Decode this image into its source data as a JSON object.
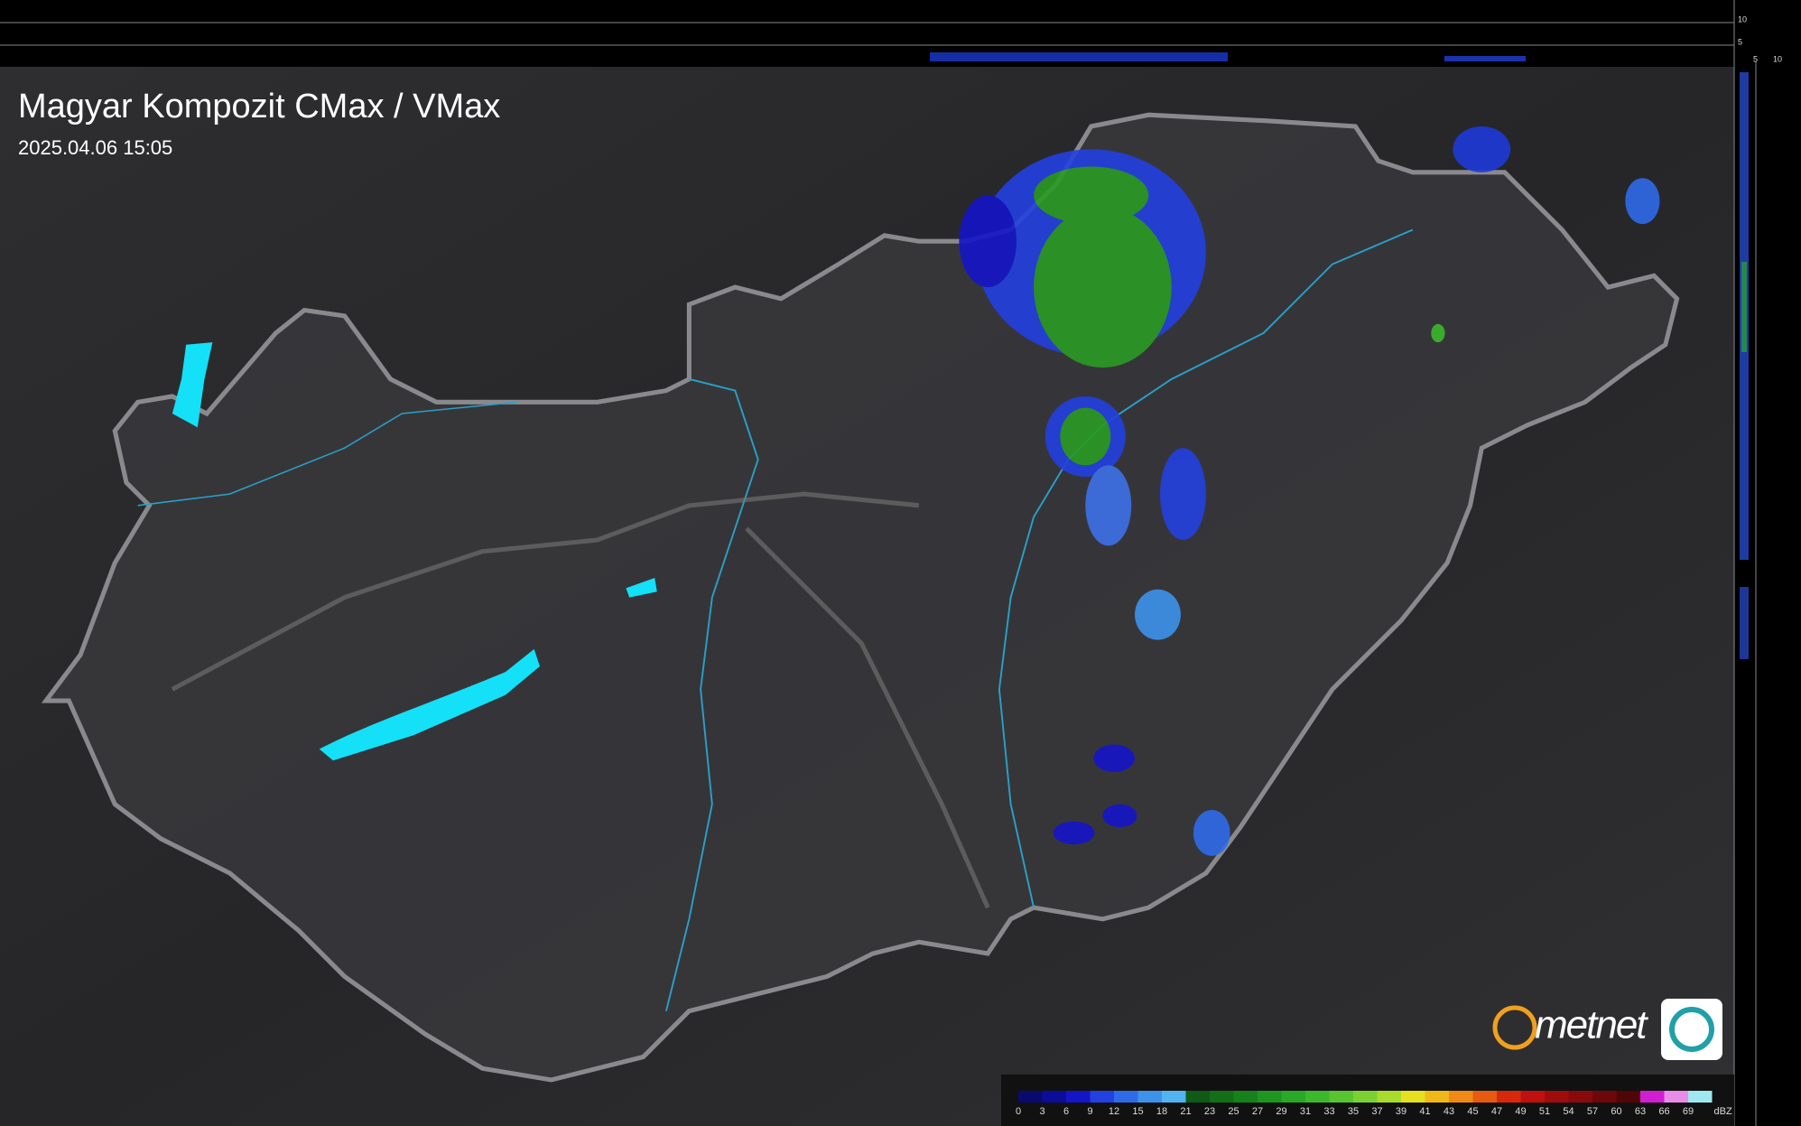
{
  "header": {
    "title": "Magyar Kompozit CMax / VMax",
    "timestamp": "2025.04.06 15:05"
  },
  "side_axis": {
    "top_ticks": [
      "10",
      "5"
    ],
    "bottom_ticks": [
      "5",
      "10"
    ]
  },
  "logo": {
    "text": "metnet"
  },
  "legend": {
    "unit": "dBZ",
    "items": [
      {
        "label": "0",
        "color": "#0a0a6e"
      },
      {
        "label": "3",
        "color": "#0c0c9a"
      },
      {
        "label": "6",
        "color": "#1515c8"
      },
      {
        "label": "9",
        "color": "#2340e0"
      },
      {
        "label": "12",
        "color": "#2f6ae8"
      },
      {
        "label": "15",
        "color": "#3d92ec"
      },
      {
        "label": "18",
        "color": "#4fb4f0"
      },
      {
        "label": "21",
        "color": "#0f5a14"
      },
      {
        "label": "23",
        "color": "#136e18"
      },
      {
        "label": "25",
        "color": "#17821c"
      },
      {
        "label": "27",
        "color": "#1f9622"
      },
      {
        "label": "29",
        "color": "#2aa828"
      },
      {
        "label": "31",
        "color": "#3cb82c"
      },
      {
        "label": "33",
        "color": "#58c430"
      },
      {
        "label": "35",
        "color": "#7cd034"
      },
      {
        "label": "37",
        "color": "#a8dc2c"
      },
      {
        "label": "39",
        "color": "#e6e020"
      },
      {
        "label": "41",
        "color": "#f0b818"
      },
      {
        "label": "43",
        "color": "#f08a14"
      },
      {
        "label": "45",
        "color": "#e85a10"
      },
      {
        "label": "47",
        "color": "#d8280c"
      },
      {
        "label": "49",
        "color": "#c01010"
      },
      {
        "label": "51",
        "color": "#a00c0c"
      },
      {
        "label": "54",
        "color": "#880a0a"
      },
      {
        "label": "57",
        "color": "#6e0808"
      },
      {
        "label": "60",
        "color": "#500606"
      },
      {
        "label": "63",
        "color": "#d21ed2"
      },
      {
        "label": "66",
        "color": "#e88ce8"
      },
      {
        "label": "69",
        "color": "#9ee8f0"
      }
    ]
  }
}
